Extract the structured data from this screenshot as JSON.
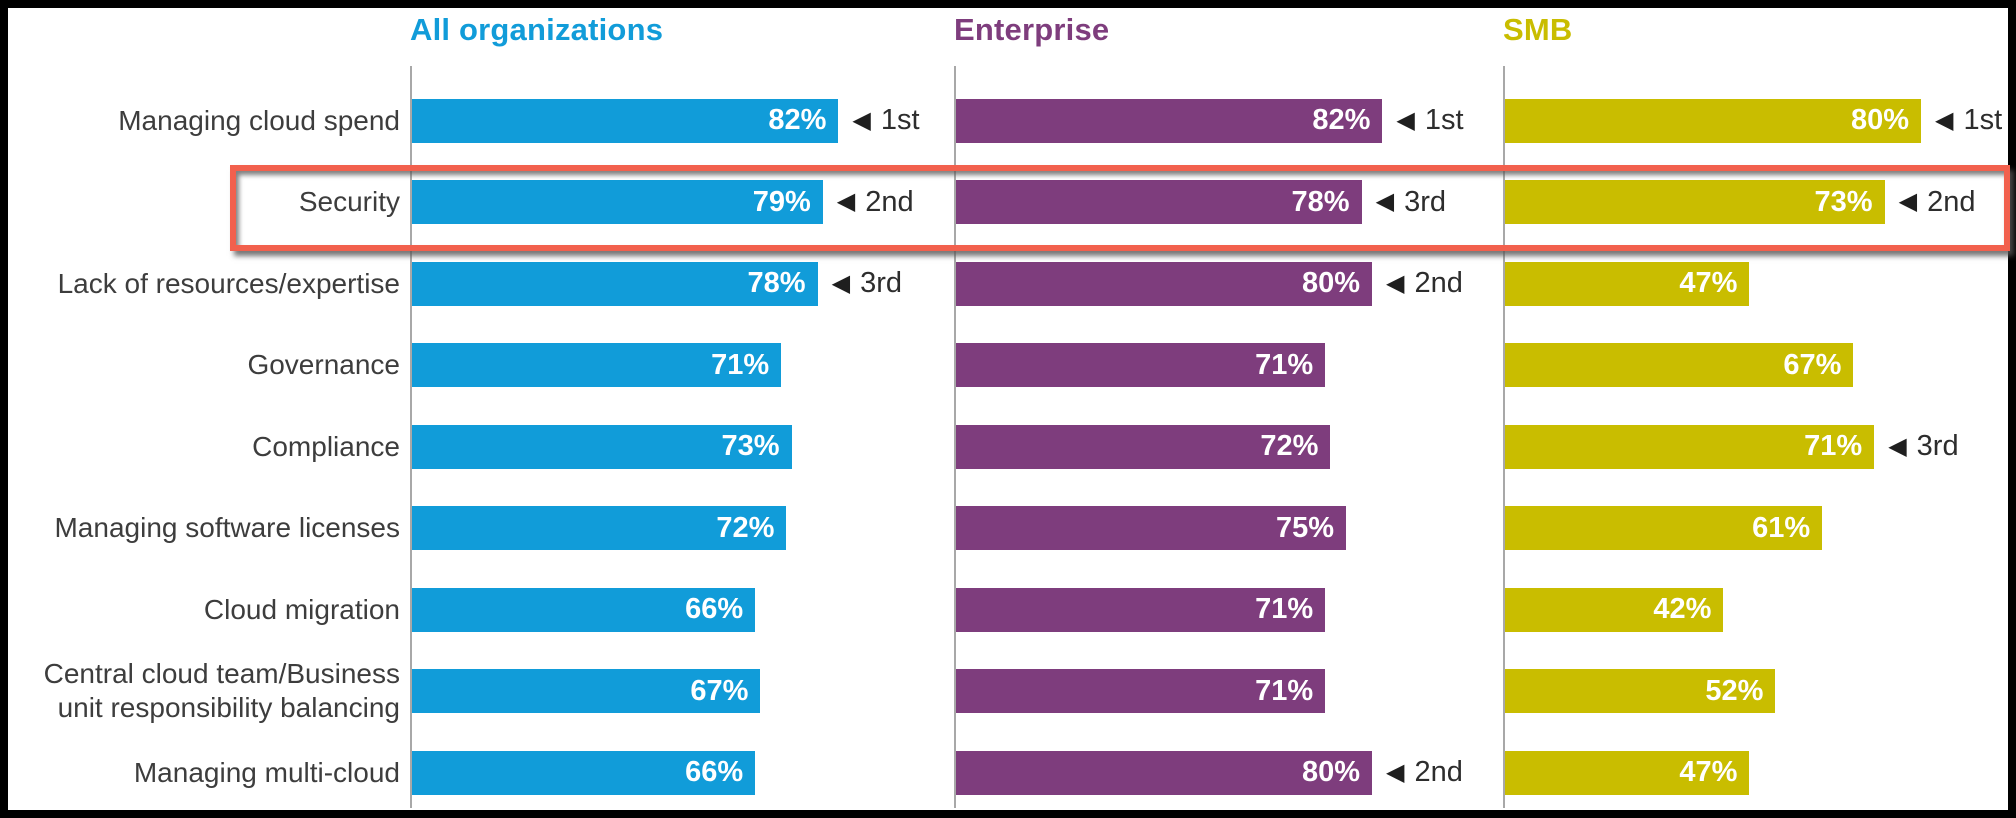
{
  "chart_data": {
    "type": "bar",
    "orientation": "horizontal",
    "unit": "%",
    "xlim": [
      0,
      100
    ],
    "grid": false,
    "legend_position": "column-headers-top",
    "categories": [
      "Managing cloud spend",
      "Security",
      "Lack of resources/expertise",
      "Governance",
      "Compliance",
      "Managing software licenses",
      "Cloud migration",
      "Central cloud team/Business unit responsibility balancing",
      "Managing multi-cloud"
    ],
    "series": [
      {
        "name": "All organizations",
        "color": "#119cd9",
        "values": [
          82,
          79,
          78,
          71,
          73,
          72,
          66,
          67,
          66
        ],
        "ranks": [
          "1st",
          "2nd",
          "3rd",
          null,
          null,
          null,
          null,
          null,
          null
        ]
      },
      {
        "name": "Enterprise",
        "color": "#7e3d7d",
        "values": [
          82,
          78,
          80,
          71,
          72,
          75,
          71,
          71,
          80
        ],
        "ranks": [
          "1st",
          "3rd",
          "2nd",
          null,
          null,
          null,
          null,
          null,
          "2nd"
        ]
      },
      {
        "name": "SMB",
        "color": "#c9bd00",
        "values": [
          80,
          73,
          47,
          67,
          71,
          61,
          42,
          52,
          47
        ],
        "ranks": [
          "1st",
          "2nd",
          null,
          null,
          "3rd",
          null,
          null,
          null,
          null
        ]
      }
    ],
    "value_suffix": "%",
    "rank_marker": "◀",
    "highlight": {
      "category": "Security",
      "box_color": "#f2604d"
    },
    "text_colors": {
      "category_label": "#3d3d3d",
      "value_label": "#ffffff",
      "rank_label": "#2d2d2d"
    }
  }
}
